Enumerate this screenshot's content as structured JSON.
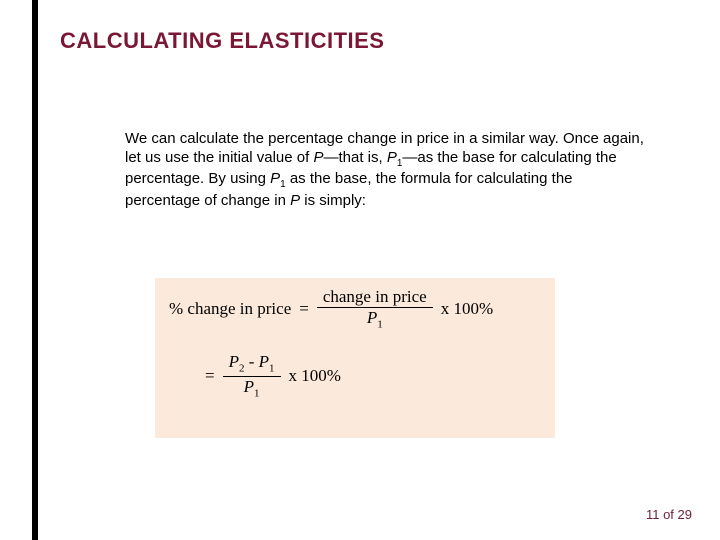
{
  "colors": {
    "title": "#7a1734",
    "eqbox_bg": "#fbe9db",
    "pager": "#6b1f3a",
    "leftbar": "#000000",
    "text": "#000000"
  },
  "title": "CALCULATING ELASTICITIES",
  "body": {
    "p1a": "We can calculate the percentage change in price in a similar way.  Once again, let us use the initial value of ",
    "p1_var1": "P",
    "p1b": "—that is, ",
    "p1_var2": "P",
    "p1_sub": "1",
    "p1c": "—as the base for calculating the percentage. By using ",
    "p1_var3": "P",
    "p1_sub2": "1",
    "p1d": " as the base, the formula for calculating the percentage of change in ",
    "p1_var4": "P",
    "p1e": " is simply:"
  },
  "equation": {
    "lhs": "% change in price",
    "eq": "=",
    "num1": "change in price",
    "den1_var": "P",
    "den1_sub": "1",
    "tail1": " x 100%",
    "num2_a": "P",
    "num2_suba": "2",
    "num2_mid": " - ",
    "num2_b": "P",
    "num2_subb": "1",
    "den2_var": "P",
    "den2_sub": "1",
    "tail2": "x 100%"
  },
  "pager": {
    "current": "11",
    "sep": " of ",
    "total": "29"
  }
}
